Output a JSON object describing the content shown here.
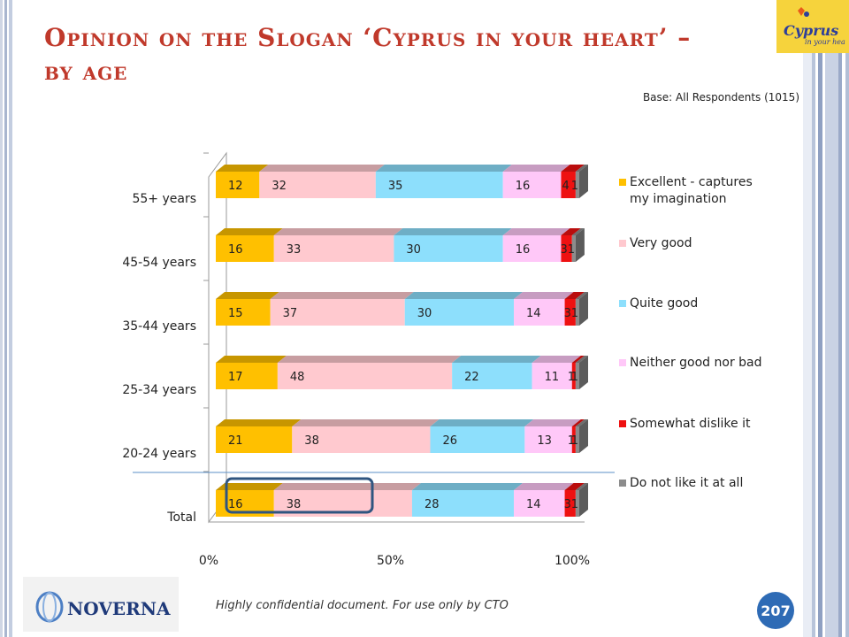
{
  "slide": {
    "title": "Opinion on the Slogan ‘Cyprus in your heart’ – by age",
    "base_note": "Base: All Respondents (1015)",
    "footer_note": "Highly confidential document. For use only by CTO",
    "page_number": "207",
    "logo_line1": "Cyprus",
    "logo_line2": "in your heart",
    "brand_name": "NOVERNA"
  },
  "colors": {
    "title": "#c0392b",
    "highlight_box": "#2f5580",
    "separator_line": "#5b8fc7"
  },
  "chart_data": {
    "type": "bar",
    "orientation": "horizontal",
    "stacked": true,
    "percent_stacked": true,
    "categories": [
      "55+ years",
      "45-54 years",
      "35-44 years",
      "25-34 years",
      "20-24 years",
      "Total"
    ],
    "series": [
      {
        "name": "Excellent - captures my imagination",
        "color": "#ffc000",
        "values": [
          12,
          16,
          15,
          17,
          21,
          16
        ]
      },
      {
        "name": "Very good",
        "color": "#ffc9cf",
        "values": [
          32,
          33,
          37,
          48,
          38,
          38
        ]
      },
      {
        "name": "Quite good",
        "color": "#8ddffc",
        "values": [
          35,
          30,
          30,
          22,
          26,
          28
        ]
      },
      {
        "name": "Neither good nor bad",
        "color": "#ffc8f8",
        "values": [
          16,
          16,
          14,
          11,
          13,
          14
        ]
      },
      {
        "name": "Somewhat dislike it",
        "color": "#ee1111",
        "values": [
          4,
          3,
          3,
          1,
          1,
          3
        ]
      },
      {
        "name": "Do not like it at all",
        "color": "#8c8c8c",
        "values": [
          1,
          1,
          1,
          1,
          1,
          1
        ]
      }
    ],
    "x_ticks": [
      "0%",
      "50%",
      "100%"
    ],
    "xlim": [
      0,
      100
    ],
    "legend_position": "right",
    "highlight": {
      "category": "Total",
      "series": [
        "Excellent - captures my imagination",
        "Very good"
      ]
    }
  }
}
